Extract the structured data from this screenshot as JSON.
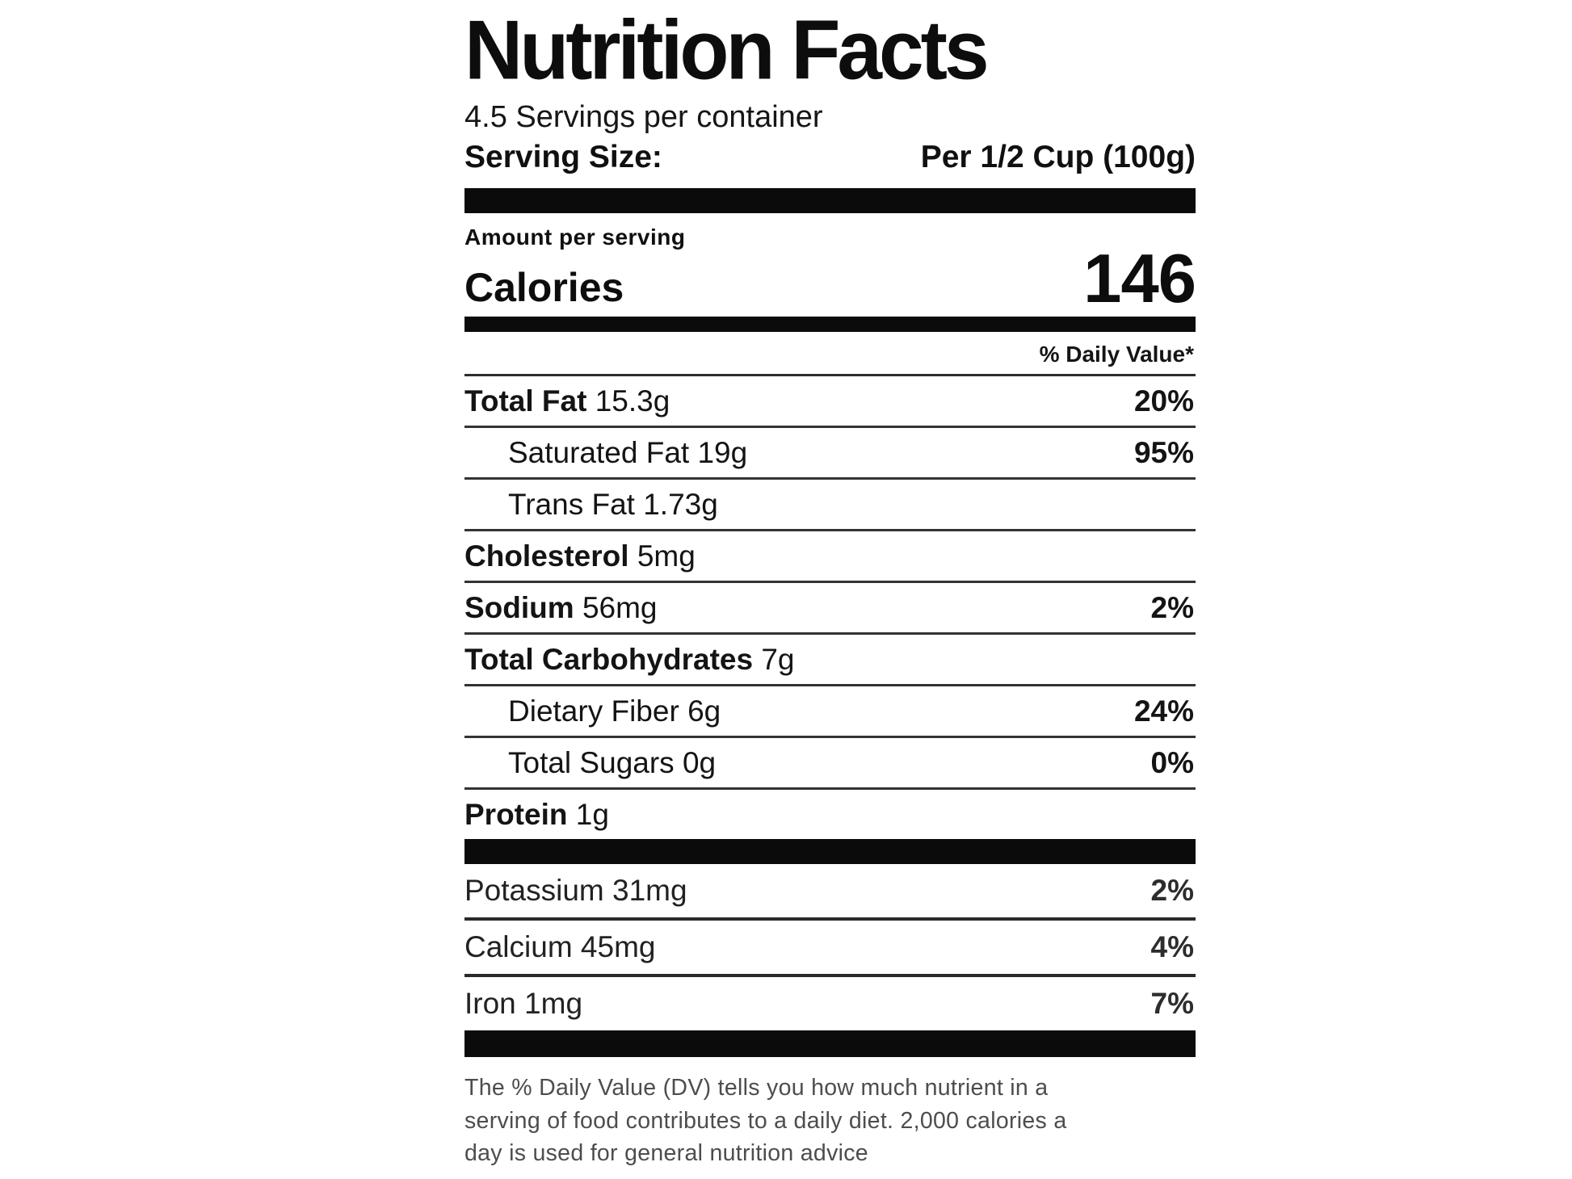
{
  "label": {
    "title": "Nutrition Facts",
    "servings_per_container": "4.5 Servings per container",
    "serving_size_label": "Serving Size:",
    "serving_size_value": "Per 1/2 Cup (100g)",
    "amount_per_serving": "Amount per serving",
    "calories_label": "Calories",
    "calories_value": "146",
    "daily_value_header": "% Daily Value*",
    "nutrients": [
      {
        "name": "Total Fat",
        "amount": "15.3g",
        "dv": "20%"
      },
      {
        "name": "Saturated Fat",
        "amount": "19g",
        "dv": "95%"
      },
      {
        "name": "Trans Fat",
        "amount": "1.73g",
        "dv": ""
      },
      {
        "name": "Cholesterol",
        "amount": "5mg",
        "dv": ""
      },
      {
        "name": "Sodium",
        "amount": "56mg",
        "dv": "2%"
      },
      {
        "name": "Total Carbohydrates",
        "amount": "7g",
        "dv": ""
      },
      {
        "name": "Dietary Fiber",
        "amount": "6g",
        "dv": "24%"
      },
      {
        "name": "Total Sugars",
        "amount": "0g",
        "dv": "0%"
      },
      {
        "name": "Protein",
        "amount": "1g",
        "dv": ""
      }
    ],
    "minerals": [
      {
        "name": "Potassium",
        "amount": "31mg",
        "dv": "2%"
      },
      {
        "name": "Calcium",
        "amount": "45mg",
        "dv": "4%"
      },
      {
        "name": "Iron",
        "amount": "1mg",
        "dv": "7%"
      }
    ],
    "footnote_lines": [
      "The % Daily Value (DV) tells you how much nutrient in a",
      "serving of food contributes to a daily diet. 2,000 calories a",
      "day is used for general nutrition advice"
    ]
  }
}
